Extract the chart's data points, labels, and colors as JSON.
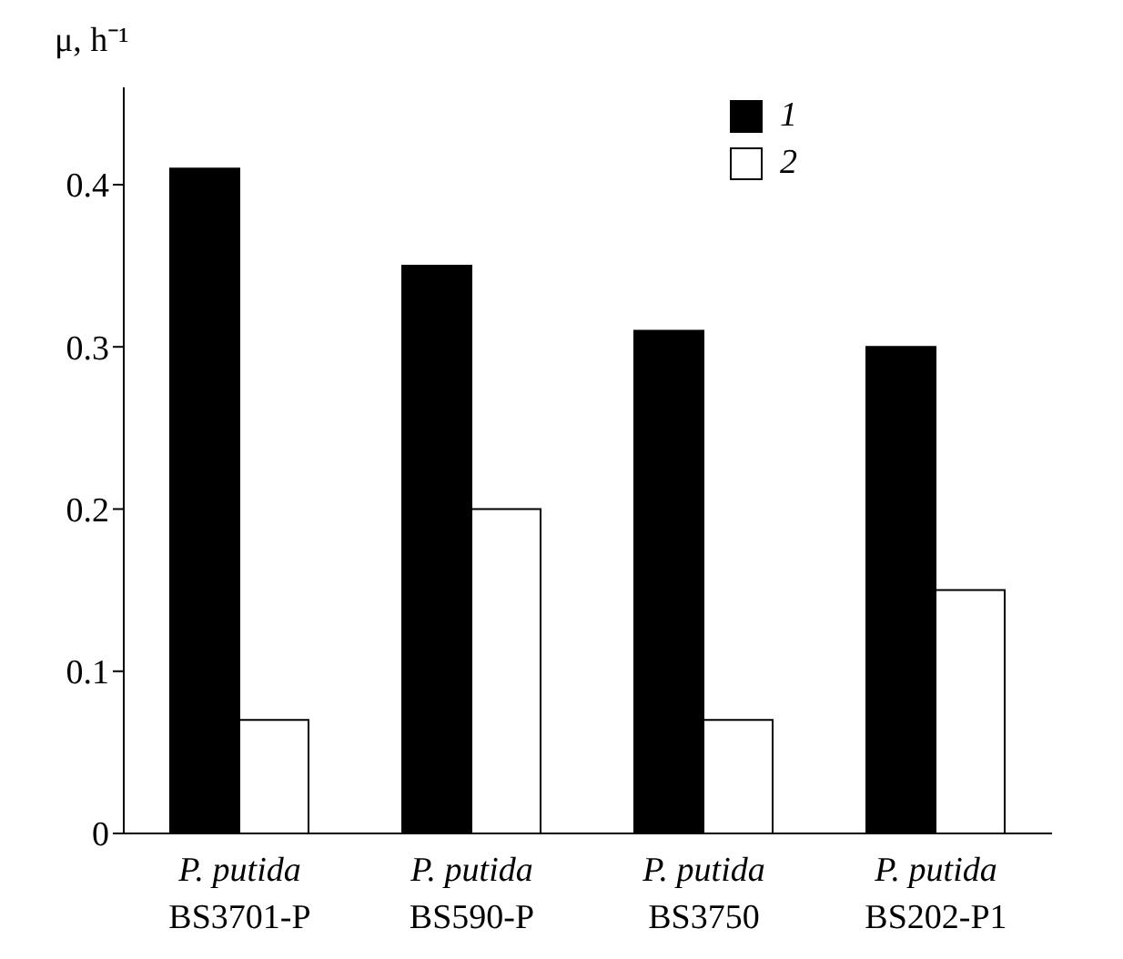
{
  "chart_data": {
    "type": "bar",
    "ylabel": "μ, h⁻¹",
    "categories": [
      "P. putida BS3701-P",
      "P. putida BS590-P",
      "P. putida BS3750",
      "P. putida BS202-P1"
    ],
    "series": [
      {
        "name": "1",
        "color": "#000000",
        "values": [
          0.41,
          0.35,
          0.31,
          0.3
        ]
      },
      {
        "name": "2",
        "color": "#ffffff",
        "values": [
          0.07,
          0.2,
          0.07,
          0.15
        ]
      }
    ],
    "ylim": [
      0,
      0.46
    ],
    "yticks": [
      0,
      0.1,
      0.2,
      0.3,
      0.4
    ],
    "grid": false,
    "legend": "top right"
  }
}
